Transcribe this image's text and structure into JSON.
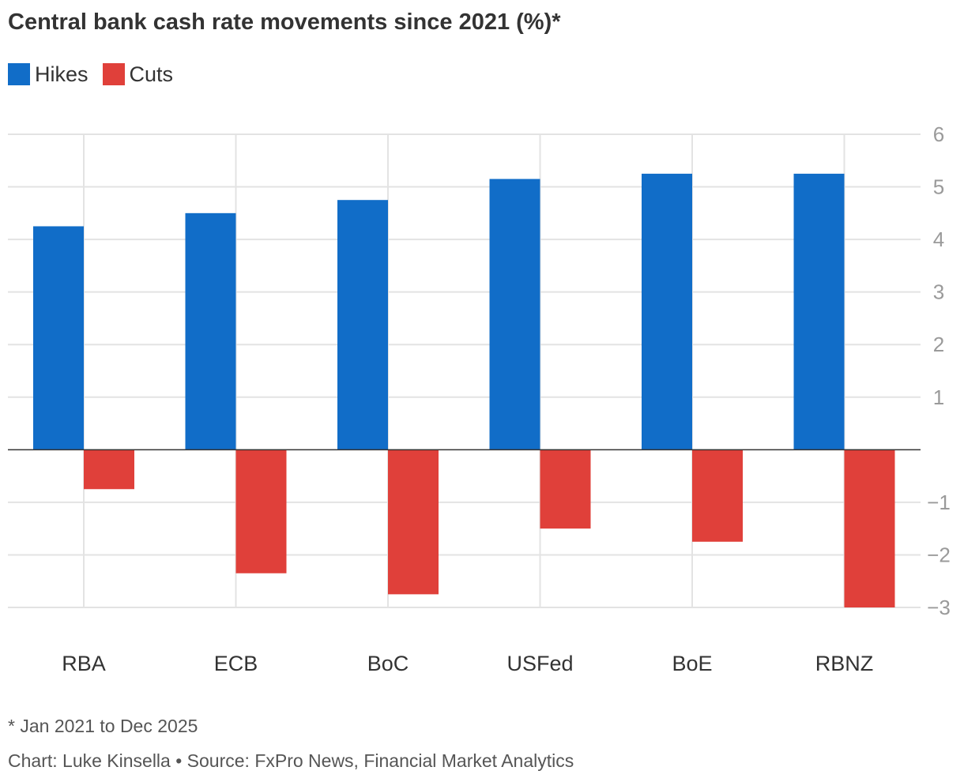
{
  "title": "Central bank cash rate movements since 2021 (%)*",
  "legend": {
    "hikes": "Hikes",
    "cuts": "Cuts"
  },
  "colors": {
    "hikes": "#116dc8",
    "cuts": "#e0403a",
    "grid": "#e3e3e3",
    "axis_text": "#9a9a9a",
    "category_text": "#333333"
  },
  "chart_data": {
    "type": "bar",
    "title": "Central bank cash rate movements since 2021 (%)*",
    "categories": [
      "RBA",
      "ECB",
      "BoC",
      "USFed",
      "BoE",
      "RBNZ"
    ],
    "series": [
      {
        "name": "Hikes",
        "values": [
          4.25,
          4.5,
          4.75,
          5.15,
          5.25,
          5.25
        ]
      },
      {
        "name": "Cuts",
        "values": [
          -0.75,
          -2.35,
          -2.75,
          -1.5,
          -1.75,
          -3.0
        ]
      }
    ],
    "ylim": [
      -3,
      6
    ],
    "yticks": [
      6,
      5,
      4,
      3,
      2,
      1,
      -1,
      -2,
      -3
    ],
    "ytick_labels": [
      "6",
      "5",
      "4",
      "3",
      "2",
      "1",
      "−1",
      "−2",
      "−3"
    ],
    "xlabel": "",
    "ylabel": "",
    "grid": true,
    "legend_position": "top-left",
    "y_axis_side": "right"
  },
  "footnote": "* Jan 2021 to Dec 2025",
  "credit": "Chart: Luke Kinsella • Source: FxPro News, Financial Market Analytics"
}
